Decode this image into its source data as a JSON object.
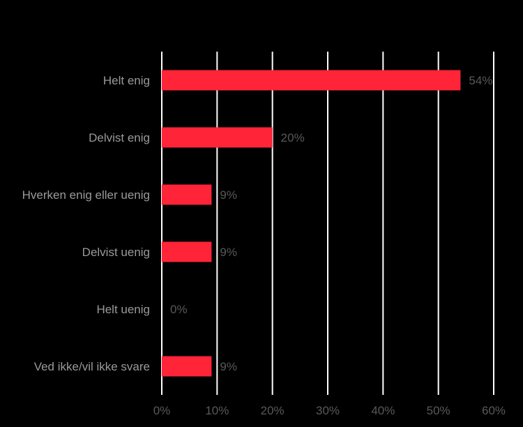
{
  "chart_data": {
    "type": "bar",
    "orientation": "horizontal",
    "title": "",
    "xlabel": "",
    "ylabel": "",
    "categories": [
      "Helt enig",
      "Delvist enig",
      "Hverken enig eller uenig",
      "Delvist uenig",
      "Helt uenig",
      "Ved ikke/vil ikke svare"
    ],
    "values": [
      54,
      20,
      9,
      9,
      0,
      9
    ],
    "value_labels": [
      "54%",
      "20%",
      "9%",
      "9%",
      "0%",
      "9%"
    ],
    "xlim": [
      0,
      60
    ],
    "x_ticks": [
      0,
      10,
      20,
      30,
      40,
      50,
      60
    ],
    "x_tick_labels": [
      "0%",
      "10%",
      "20%",
      "30%",
      "40%",
      "50%",
      "60%"
    ],
    "grid": true,
    "legend": "none",
    "colors": {
      "background": "#000000",
      "bar": "#ff2438",
      "gridline": "#ffffff",
      "category_text": "#9a9a9a",
      "value_text": "#595959",
      "tick_text": "#595959"
    }
  }
}
